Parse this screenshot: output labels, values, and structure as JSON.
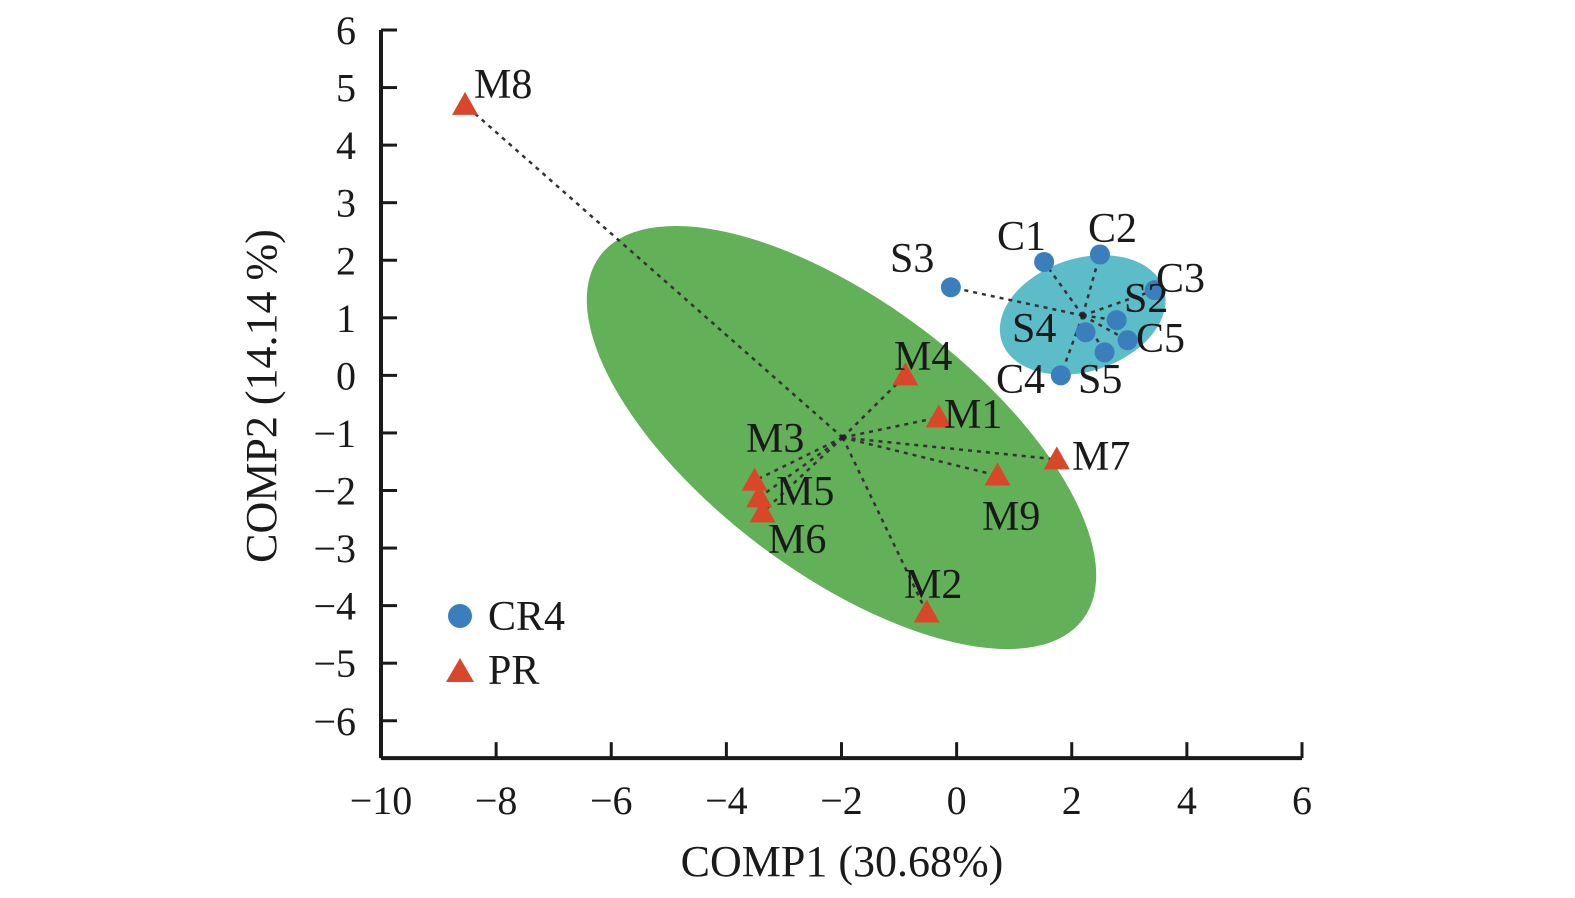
{
  "chart_data": {
    "type": "scatter",
    "title": "",
    "xlabel": "COMP1 (30.68%)",
    "ylabel": "COMP2 (14.14 %)",
    "xlim": [
      -10,
      6
    ],
    "ylim": [
      -6.65,
      6
    ],
    "xticks": [
      -10,
      -8,
      -6,
      -4,
      -2,
      0,
      2,
      4,
      6
    ],
    "xtick_labels": [
      "−10",
      "−8",
      "−6",
      "−4",
      "−2",
      "0",
      "2",
      "4",
      "6"
    ],
    "yticks": [
      6,
      5,
      4,
      3,
      2,
      1,
      0,
      -1,
      -2,
      -3,
      -4,
      -5,
      -6
    ],
    "ytick_labels": [
      "6",
      "5",
      "4",
      "3",
      "2",
      "1",
      "0",
      "−1",
      "−2",
      "−3",
      "−4",
      "−5",
      "−6"
    ],
    "grid": false,
    "legend_position": "bottom-left",
    "series": [
      {
        "name": "CR4",
        "marker": "circle",
        "color": "#3a7fbc",
        "ellipse_color": "#5cbcc8",
        "centroid": {
          "x": 2.19,
          "y": 1.04
        },
        "ellipse": {
          "cx": 2.19,
          "cy": 1.05,
          "rx": 1.48,
          "ry": 0.98,
          "angle_deg": -18
        },
        "points": [
          {
            "label": "C1",
            "x": 1.52,
            "y": 1.97
          },
          {
            "label": "C2",
            "x": 2.49,
            "y": 2.1
          },
          {
            "label": "C3",
            "x": 3.44,
            "y": 1.48
          },
          {
            "label": "C4",
            "x": 1.81,
            "y": 0.0
          },
          {
            "label": "C5",
            "x": 2.97,
            "y": 0.61
          },
          {
            "label": "S2",
            "x": 2.78,
            "y": 0.96
          },
          {
            "label": "S3",
            "x": -0.1,
            "y": 1.53
          },
          {
            "label": "S4",
            "x": 2.24,
            "y": 0.75
          },
          {
            "label": "S5",
            "x": 2.57,
            "y": 0.4
          }
        ]
      },
      {
        "name": "PR",
        "marker": "triangle",
        "color": "#d9472b",
        "ellipse_color": "#62b057",
        "centroid": {
          "x": -1.98,
          "y": -1.08
        },
        "ellipse": {
          "cx": -2.0,
          "cy": -1.08,
          "rx": 5.25,
          "ry": 2.35,
          "angle_deg": 37
        },
        "points": [
          {
            "label": "M1",
            "x": -0.31,
            "y": -0.73
          },
          {
            "label": "M2",
            "x": -0.52,
            "y": -4.12
          },
          {
            "label": "M3",
            "x": -3.51,
            "y": -1.83
          },
          {
            "label": "M4",
            "x": -0.89,
            "y": 0.0
          },
          {
            "label": "M5",
            "x": -3.43,
            "y": -2.12
          },
          {
            "label": "M6",
            "x": -3.37,
            "y": -2.38
          },
          {
            "label": "M7",
            "x": 1.74,
            "y": -1.46
          },
          {
            "label": "M8",
            "x": -8.54,
            "y": 4.7
          },
          {
            "label": "M9",
            "x": 0.71,
            "y": -1.74
          }
        ]
      }
    ],
    "legend": [
      {
        "label": "CR4",
        "marker": "circle",
        "color": "#3a7fbc"
      },
      {
        "label": "PR",
        "marker": "triangle",
        "color": "#d9472b"
      }
    ]
  }
}
